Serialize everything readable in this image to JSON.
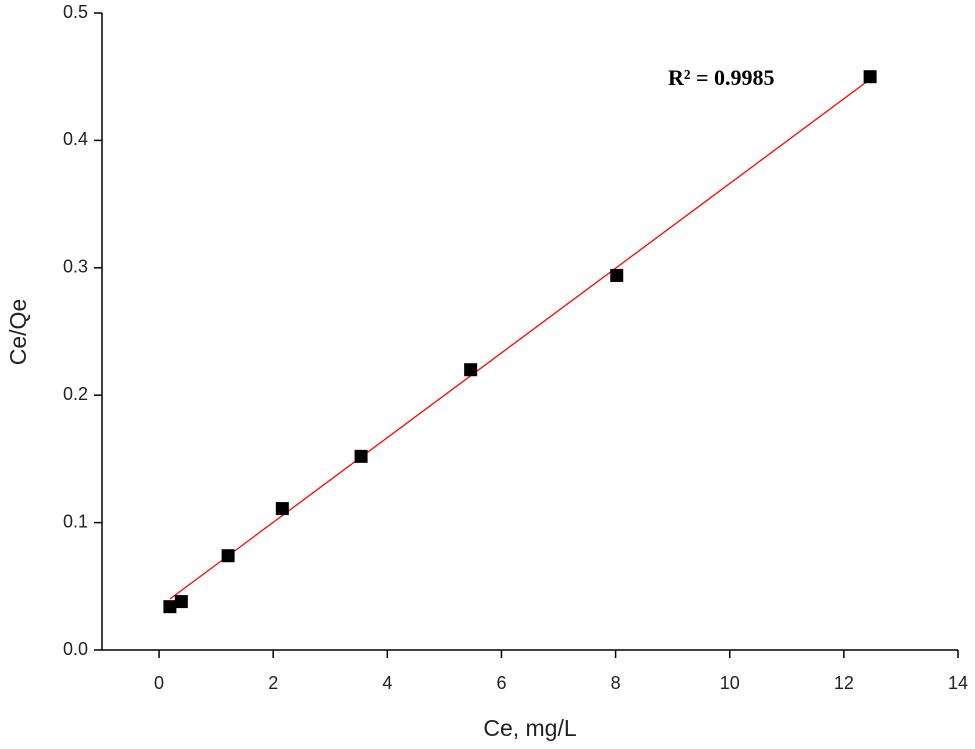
{
  "chart_data": {
    "type": "scatter",
    "xlabel": "Ce, mg/L",
    "ylabel": "Ce/Qe",
    "annotation": "R² = 0.9985",
    "x": [
      0.19,
      0.39,
      1.21,
      2.16,
      3.54,
      5.46,
      8.02,
      12.46
    ],
    "values": [
      0.034,
      0.038,
      0.074,
      0.111,
      0.152,
      0.22,
      0.294,
      0.45
    ],
    "color": "#000000",
    "fit": {
      "x": [
        0.19,
        12.46
      ],
      "values": [
        0.04,
        0.448
      ],
      "color": "#ff0000"
    },
    "xlim": [
      -1,
      14
    ],
    "xticks": [
      0,
      2,
      4,
      6,
      8,
      10,
      12,
      14
    ],
    "ylim": [
      0,
      0.5
    ],
    "yticks": [
      {
        "value": 0,
        "label": "0.0"
      },
      0.1,
      0.2,
      0.3,
      0.4,
      0.5
    ],
    "grid": false
  }
}
